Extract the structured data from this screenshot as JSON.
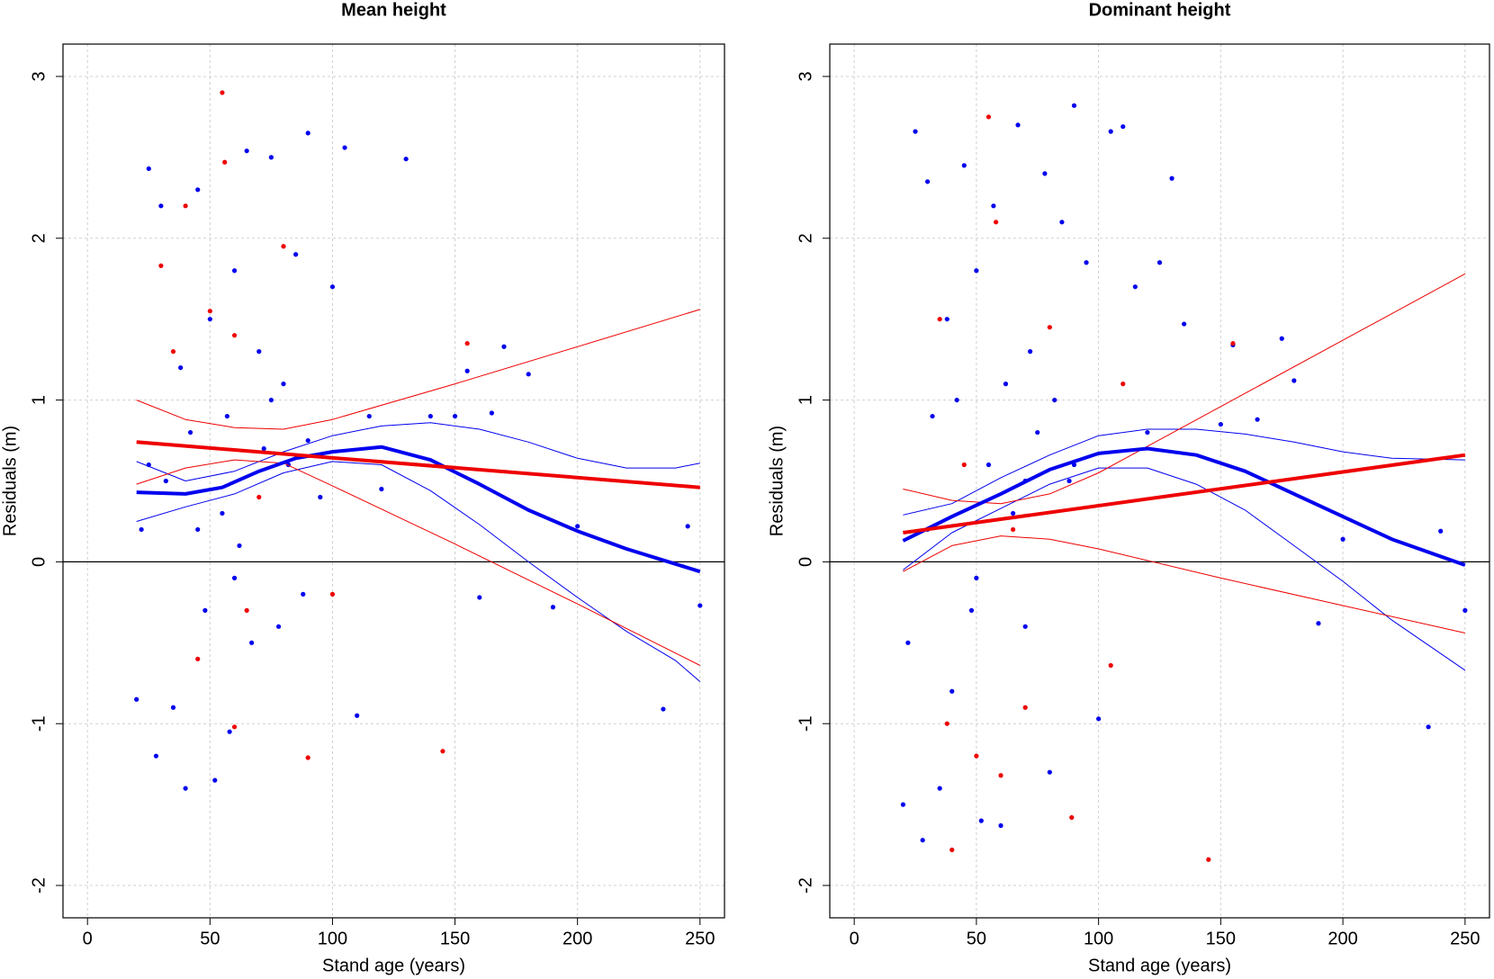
{
  "chart_data": [
    {
      "type": "scatter",
      "title": "Mean height",
      "xlabel": "Stand age (years)",
      "ylabel": "Residuals (m)",
      "xlim": [
        -10,
        260
      ],
      "ylim": [
        -2.2,
        3.2
      ],
      "xticks": [
        0,
        50,
        100,
        150,
        200,
        250
      ],
      "yticks": [
        -2,
        -1,
        0,
        1,
        2,
        3
      ],
      "grid": true,
      "hline": 0,
      "series": [
        {
          "mark": "point",
          "color": "#0000ee",
          "x": [
            20,
            22,
            25,
            28,
            30,
            32,
            35,
            38,
            40,
            42,
            45,
            48,
            50,
            52,
            55,
            57,
            58,
            60,
            62,
            65,
            67,
            70,
            72,
            75,
            78,
            80,
            82,
            85,
            88,
            90,
            95,
            100,
            105,
            110,
            115,
            120,
            130,
            140,
            150,
            155,
            160,
            165,
            170,
            180,
            190,
            200,
            235,
            245,
            250,
            25,
            45,
            60,
            75,
            90
          ],
          "values": [
            -0.85,
            0.2,
            2.43,
            -1.2,
            2.2,
            0.5,
            -0.9,
            1.2,
            -1.4,
            0.8,
            2.3,
            -0.3,
            1.5,
            -1.35,
            0.3,
            0.9,
            -1.05,
            1.8,
            0.1,
            2.54,
            -0.5,
            1.3,
            0.7,
            2.5,
            -0.4,
            1.1,
            0.6,
            1.9,
            -0.2,
            2.65,
            0.4,
            1.7,
            2.56,
            -0.95,
            0.9,
            0.45,
            2.49,
            0.9,
            0.9,
            1.18,
            -0.22,
            0.92,
            1.33,
            1.16,
            -0.28,
            0.22,
            -0.91,
            0.22,
            -0.27,
            0.6,
            0.2,
            -0.1,
            1.0,
            0.75
          ]
        },
        {
          "mark": "point",
          "color": "#ee0000",
          "x": [
            30,
            35,
            40,
            45,
            50,
            55,
            56,
            60,
            65,
            70,
            80,
            90,
            100,
            145,
            155,
            60
          ],
          "values": [
            1.83,
            1.3,
            2.2,
            -0.6,
            1.55,
            2.9,
            2.47,
            -1.02,
            -0.3,
            0.4,
            1.95,
            -1.21,
            -0.2,
            -1.17,
            1.35,
            1.4
          ]
        },
        {
          "mark": "line",
          "color": "#0000ee",
          "width": 1,
          "x": [
            20,
            40,
            60,
            80,
            100,
            120,
            140,
            160,
            180,
            200,
            220,
            240,
            250
          ],
          "values": [
            0.62,
            0.5,
            0.56,
            0.68,
            0.78,
            0.84,
            0.86,
            0.82,
            0.74,
            0.64,
            0.58,
            0.58,
            0.61
          ]
        },
        {
          "mark": "line",
          "color": "#0000ee",
          "width": 1,
          "x": [
            20,
            40,
            60,
            80,
            100,
            120,
            140,
            160,
            180,
            200,
            220,
            240,
            250
          ],
          "values": [
            0.25,
            0.34,
            0.42,
            0.55,
            0.62,
            0.6,
            0.44,
            0.23,
            0.0,
            -0.22,
            -0.43,
            -0.61,
            -0.74
          ]
        },
        {
          "mark": "line",
          "color": "#ee0000",
          "width": 1,
          "x": [
            20,
            40,
            60,
            80,
            100,
            150,
            200,
            250
          ],
          "values": [
            1.0,
            0.88,
            0.83,
            0.82,
            0.88,
            1.1,
            1.33,
            1.56
          ]
        },
        {
          "mark": "line",
          "color": "#ee0000",
          "width": 1,
          "x": [
            20,
            40,
            60,
            80,
            100,
            150,
            200,
            250
          ],
          "values": [
            0.48,
            0.58,
            0.63,
            0.61,
            0.47,
            0.11,
            -0.26,
            -0.64
          ]
        },
        {
          "mark": "line",
          "color": "#0000ee",
          "width": 4,
          "x": [
            20,
            40,
            55,
            70,
            85,
            100,
            120,
            140,
            160,
            180,
            200,
            220,
            250
          ],
          "values": [
            0.43,
            0.42,
            0.46,
            0.56,
            0.64,
            0.68,
            0.71,
            0.63,
            0.48,
            0.32,
            0.19,
            0.08,
            -0.06
          ]
        },
        {
          "mark": "line",
          "color": "#ee0000",
          "width": 4,
          "x": [
            20,
            250
          ],
          "values": [
            0.74,
            0.46
          ]
        }
      ]
    },
    {
      "type": "scatter",
      "title": "Dominant height",
      "xlabel": "Stand age (years)",
      "ylabel": "Residuals (m)",
      "xlim": [
        -10,
        260
      ],
      "ylim": [
        -2.2,
        3.2
      ],
      "xticks": [
        0,
        50,
        100,
        150,
        200,
        250
      ],
      "yticks": [
        -2,
        -1,
        0,
        1,
        2,
        3
      ],
      "grid": true,
      "hline": 0,
      "series": [
        {
          "mark": "point",
          "color": "#0000ee",
          "x": [
            20,
            22,
            25,
            28,
            30,
            32,
            35,
            38,
            40,
            42,
            45,
            48,
            50,
            52,
            55,
            57,
            60,
            62,
            65,
            67,
            70,
            72,
            75,
            78,
            80,
            82,
            85,
            88,
            90,
            95,
            100,
            105,
            110,
            115,
            120,
            125,
            130,
            135,
            150,
            155,
            165,
            175,
            180,
            190,
            200,
            235,
            240,
            250,
            30,
            50,
            70,
            90
          ],
          "values": [
            -1.5,
            -0.5,
            2.66,
            -1.72,
            2.35,
            0.9,
            -1.4,
            1.5,
            -0.8,
            1.0,
            2.45,
            -0.3,
            1.8,
            -1.6,
            0.6,
            2.2,
            -1.63,
            1.1,
            0.3,
            2.7,
            -0.4,
            1.3,
            0.8,
            2.4,
            -1.3,
            1.0,
            2.1,
            0.5,
            2.82,
            1.85,
            -0.97,
            2.66,
            2.69,
            1.7,
            0.8,
            1.85,
            2.37,
            1.47,
            0.85,
            1.34,
            0.88,
            1.38,
            1.12,
            -0.38,
            0.14,
            -1.02,
            0.19,
            -0.3,
            0.2,
            -0.1,
            0.5,
            0.6
          ]
        },
        {
          "mark": "point",
          "color": "#ee0000",
          "x": [
            35,
            38,
            40,
            45,
            50,
            55,
            58,
            60,
            65,
            70,
            80,
            89,
            105,
            110,
            145,
            155
          ],
          "values": [
            1.5,
            -1.0,
            -1.78,
            0.6,
            -1.2,
            2.75,
            2.1,
            -1.32,
            0.2,
            -0.9,
            1.45,
            -1.58,
            -0.64,
            1.1,
            -1.84,
            1.35
          ]
        },
        {
          "mark": "line",
          "color": "#0000ee",
          "width": 1,
          "x": [
            20,
            40,
            60,
            80,
            100,
            120,
            140,
            160,
            180,
            200,
            220,
            250
          ],
          "values": [
            0.29,
            0.36,
            0.52,
            0.66,
            0.78,
            0.82,
            0.82,
            0.79,
            0.74,
            0.68,
            0.64,
            0.63
          ]
        },
        {
          "mark": "line",
          "color": "#0000ee",
          "width": 1,
          "x": [
            20,
            40,
            60,
            80,
            100,
            120,
            140,
            160,
            180,
            200,
            220,
            250
          ],
          "values": [
            -0.05,
            0.18,
            0.33,
            0.48,
            0.58,
            0.58,
            0.48,
            0.32,
            0.1,
            -0.12,
            -0.36,
            -0.67
          ]
        },
        {
          "mark": "line",
          "color": "#ee0000",
          "width": 1,
          "x": [
            20,
            40,
            60,
            80,
            100,
            150,
            200,
            250
          ],
          "values": [
            0.45,
            0.38,
            0.36,
            0.42,
            0.55,
            0.96,
            1.37,
            1.78
          ]
        },
        {
          "mark": "line",
          "color": "#ee0000",
          "width": 1,
          "x": [
            20,
            40,
            60,
            80,
            100,
            150,
            200,
            250
          ],
          "values": [
            -0.06,
            0.1,
            0.16,
            0.14,
            0.08,
            -0.1,
            -0.27,
            -0.44
          ]
        },
        {
          "mark": "line",
          "color": "#0000ee",
          "width": 4,
          "x": [
            20,
            40,
            60,
            80,
            100,
            120,
            140,
            160,
            180,
            200,
            220,
            250
          ],
          "values": [
            0.13,
            0.28,
            0.42,
            0.57,
            0.67,
            0.7,
            0.66,
            0.56,
            0.42,
            0.28,
            0.14,
            -0.02
          ]
        },
        {
          "mark": "line",
          "color": "#ee0000",
          "width": 4,
          "x": [
            20,
            250
          ],
          "values": [
            0.18,
            0.66
          ]
        }
      ]
    }
  ]
}
